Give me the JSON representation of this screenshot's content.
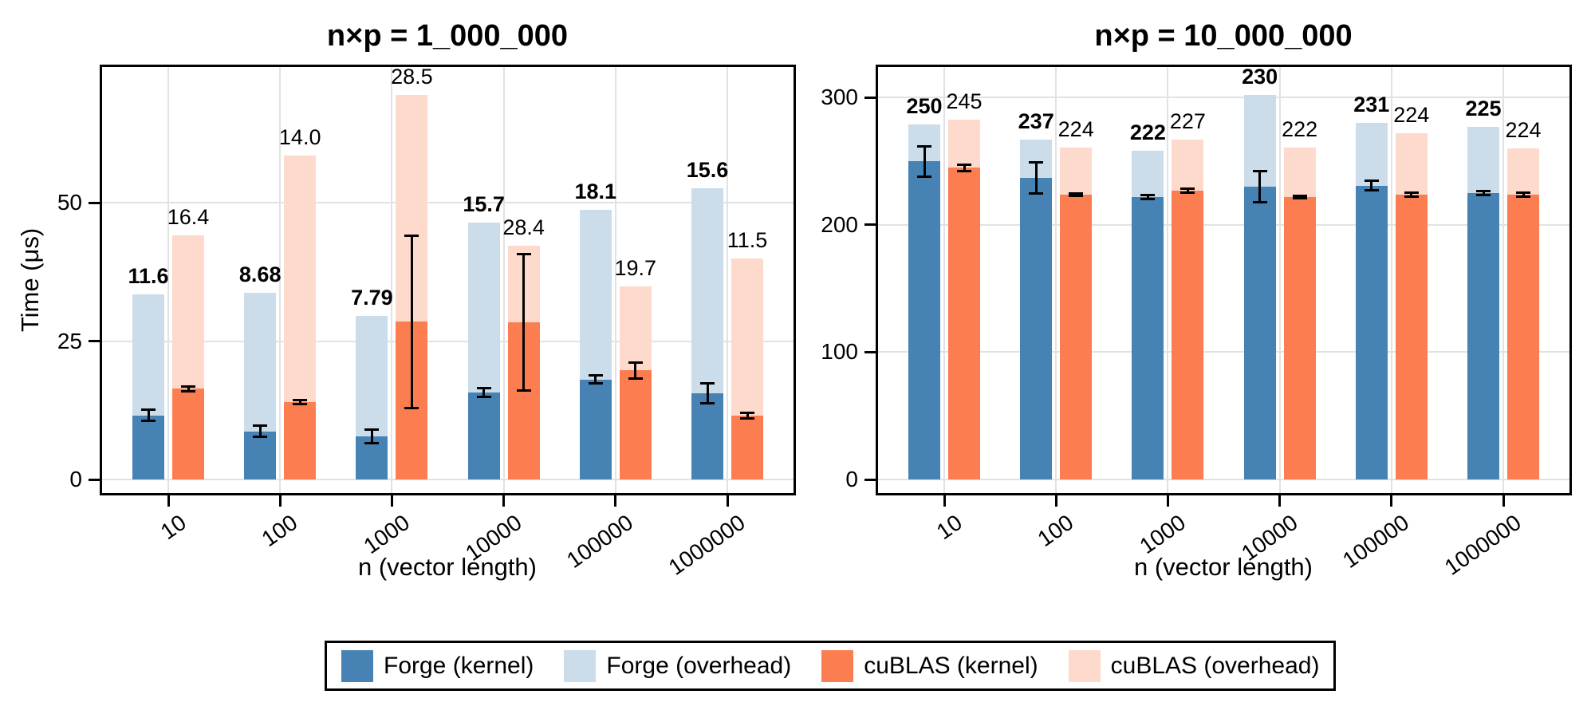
{
  "colors": {
    "forge_kernel": "#4682B4",
    "forge_overhead": "#CBDCEB",
    "cublas_kernel": "#FC7E50",
    "cublas_overhead": "#FDDACB",
    "gridline": "#E2E2E2",
    "frame": "#000000",
    "error_bar": "#000000"
  },
  "legend": {
    "items": [
      {
        "label": "Forge (kernel)",
        "color_key": "forge_kernel"
      },
      {
        "label": "Forge (overhead)",
        "color_key": "forge_overhead"
      },
      {
        "label": "cuBLAS (kernel)",
        "color_key": "cublas_kernel"
      },
      {
        "label": "cuBLAS (overhead)",
        "color_key": "cublas_overhead"
      }
    ]
  },
  "chart_data": [
    {
      "type": "bar",
      "title": "n×p = 1_000_000",
      "xlabel": "n (vector length)",
      "ylabel": "Time (μs)",
      "categories": [
        "10",
        "100",
        "1000",
        "10000",
        "100000",
        "1000000"
      ],
      "yticks": [
        0,
        25,
        50
      ],
      "ylim": [
        0,
        75
      ],
      "grid": true,
      "legend_position": "bottom",
      "series": [
        {
          "name": "Forge (kernel)",
          "color_key": "forge_kernel",
          "labels_bold": true,
          "values": [
            11.6,
            8.68,
            7.79,
            15.7,
            18.1,
            15.6
          ],
          "bar_labels": [
            "11.6",
            "8.68",
            "7.79",
            "15.7",
            "18.1",
            "15.6"
          ],
          "errors": [
            1.0,
            1.0,
            1.2,
            0.8,
            0.7,
            1.8
          ]
        },
        {
          "name": "Forge (overhead)",
          "color_key": "forge_overhead",
          "stacked_on": "Forge (kernel)",
          "values": [
            21.8,
            25.0,
            21.8,
            30.8,
            30.6,
            37.0
          ]
        },
        {
          "name": "cuBLAS (kernel)",
          "color_key": "cublas_kernel",
          "labels_bold": false,
          "values": [
            16.4,
            14.0,
            28.5,
            28.4,
            19.7,
            11.5
          ],
          "bar_labels": [
            "16.4",
            "14.0",
            "28.5",
            "28.4",
            "19.7",
            "11.5"
          ],
          "errors": [
            0.4,
            0.3,
            15.6,
            12.3,
            1.5,
            0.5
          ]
        },
        {
          "name": "cuBLAS (overhead)",
          "color_key": "cublas_overhead",
          "stacked_on": "cuBLAS (kernel)",
          "values": [
            27.8,
            44.6,
            41.0,
            13.8,
            15.2,
            28.5
          ]
        }
      ]
    },
    {
      "type": "bar",
      "title": "n×p = 10_000_000",
      "xlabel": "n (vector length)",
      "ylabel": "",
      "categories": [
        "10",
        "100",
        "1000",
        "10000",
        "100000",
        "1000000"
      ],
      "yticks": [
        0,
        100,
        200,
        300
      ],
      "ylim": [
        0,
        326
      ],
      "grid": true,
      "legend_position": "bottom",
      "series": [
        {
          "name": "Forge (kernel)",
          "color_key": "forge_kernel",
          "labels_bold": true,
          "values": [
            250,
            237,
            222,
            230,
            231,
            225
          ],
          "bar_labels": [
            "250",
            "237",
            "222",
            "230",
            "231",
            "225"
          ],
          "errors": [
            12,
            12,
            1.5,
            12,
            3.5,
            1.5
          ]
        },
        {
          "name": "Forge (overhead)",
          "color_key": "forge_overhead",
          "stacked_on": "Forge (kernel)",
          "values": [
            29,
            30,
            36,
            72,
            49,
            52
          ]
        },
        {
          "name": "cuBLAS (kernel)",
          "color_key": "cublas_kernel",
          "labels_bold": false,
          "values": [
            245,
            224,
            227,
            222,
            224,
            224
          ],
          "bar_labels": [
            "245",
            "224",
            "227",
            "222",
            "224",
            "224"
          ],
          "errors": [
            2.5,
            1,
            1.5,
            1,
            1.5,
            1.5
          ]
        },
        {
          "name": "cuBLAS (overhead)",
          "color_key": "cublas_overhead",
          "stacked_on": "cuBLAS (kernel)",
          "values": [
            38,
            37,
            40,
            39,
            48,
            36
          ]
        }
      ]
    }
  ]
}
